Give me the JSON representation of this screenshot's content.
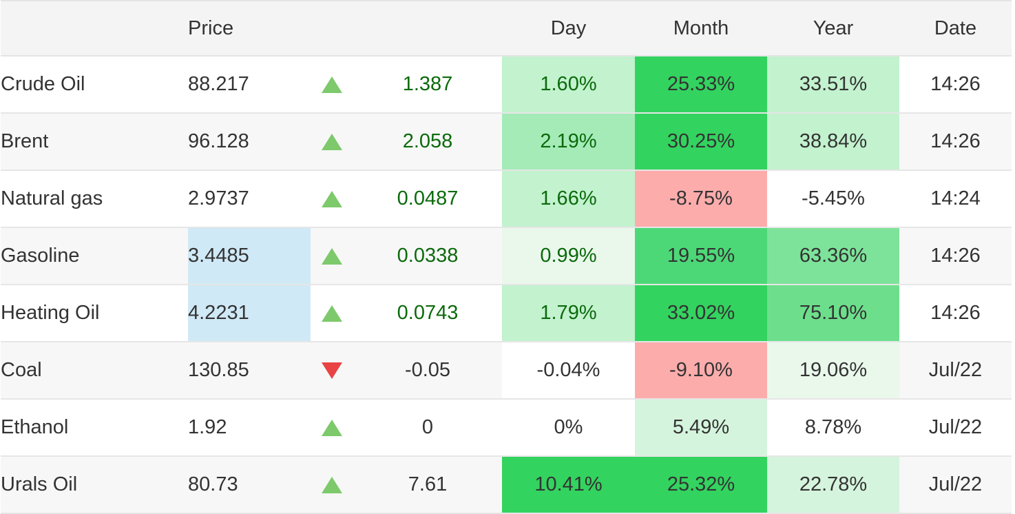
{
  "header": {
    "name": "",
    "price": "Price",
    "arrow": "",
    "change": "",
    "day": "Day",
    "month": "Month",
    "year": "Year",
    "date": "Date"
  },
  "colors": {
    "positive_text": "#0b6a0b",
    "up_arrow": "#7dc96b",
    "down_arrow": "#e84444",
    "highlight_price": "#d0e9f6",
    "heat": {
      "neutral": "transparent",
      "green_lightest": "#eaf8ec",
      "green_lighter": "#d5f4dd",
      "green_light": "#c2f2ce",
      "green_mid_light": "#a5ebb8",
      "green_mid": "#7de39a",
      "green_mid_strong": "#6ddf8c",
      "green_strong": "#4dd877",
      "green_strongest": "#33d35f",
      "red_light": "#fdacac"
    }
  },
  "rows": [
    {
      "name": "Crude Oil",
      "price": "88.217",
      "price_highlight": false,
      "direction": "up",
      "change": "1.387",
      "change_positive": true,
      "day": "1.60%",
      "day_positive": true,
      "day_heat": "green_light",
      "month": "25.33%",
      "month_heat": "green_strongest",
      "year": "33.51%",
      "year_heat": "green_light",
      "date": "14:26"
    },
    {
      "name": "Brent",
      "price": "96.128",
      "price_highlight": false,
      "direction": "up",
      "change": "2.058",
      "change_positive": true,
      "day": "2.19%",
      "day_positive": true,
      "day_heat": "green_mid_light",
      "month": "30.25%",
      "month_heat": "green_strongest",
      "year": "38.84%",
      "year_heat": "green_light",
      "date": "14:26"
    },
    {
      "name": "Natural gas",
      "price": "2.9737",
      "price_highlight": false,
      "direction": "up",
      "change": "0.0487",
      "change_positive": true,
      "day": "1.66%",
      "day_positive": true,
      "day_heat": "green_light",
      "month": "-8.75%",
      "month_heat": "red_light",
      "year": "-5.45%",
      "year_heat": "neutral",
      "date": "14:24"
    },
    {
      "name": "Gasoline",
      "price": "3.4485",
      "price_highlight": true,
      "direction": "up",
      "change": "0.0338",
      "change_positive": true,
      "day": "0.99%",
      "day_positive": true,
      "day_heat": "green_lightest",
      "month": "19.55%",
      "month_heat": "green_strong",
      "year": "63.36%",
      "year_heat": "green_mid",
      "date": "14:26"
    },
    {
      "name": "Heating Oil",
      "price": "4.2231",
      "price_highlight": true,
      "direction": "up",
      "change": "0.0743",
      "change_positive": true,
      "day": "1.79%",
      "day_positive": true,
      "day_heat": "green_light",
      "month": "33.02%",
      "month_heat": "green_strongest",
      "year": "75.10%",
      "year_heat": "green_mid_strong",
      "date": "14:26"
    },
    {
      "name": "Coal",
      "price": "130.85",
      "price_highlight": false,
      "direction": "down",
      "change": "-0.05",
      "change_positive": false,
      "day": "-0.04%",
      "day_positive": false,
      "day_heat": "white",
      "month": "-9.10%",
      "month_heat": "red_light",
      "year": "19.06%",
      "year_heat": "green_lightest",
      "date": "Jul/22"
    },
    {
      "name": "Ethanol",
      "price": "1.92",
      "price_highlight": false,
      "direction": "up",
      "change": "0",
      "change_positive": false,
      "day": "0%",
      "day_positive": false,
      "day_heat": "neutral",
      "month": "5.49%",
      "month_heat": "green_lighter",
      "year": "8.78%",
      "year_heat": "neutral",
      "date": "Jul/22"
    },
    {
      "name": "Urals Oil",
      "price": "80.73",
      "price_highlight": false,
      "direction": "up",
      "change": "7.61",
      "change_positive": false,
      "day": "10.41%",
      "day_positive": false,
      "day_heat": "green_strongest",
      "month": "25.32%",
      "month_heat": "green_strongest",
      "year": "22.78%",
      "year_heat": "green_lighter",
      "date": "Jul/22"
    }
  ]
}
